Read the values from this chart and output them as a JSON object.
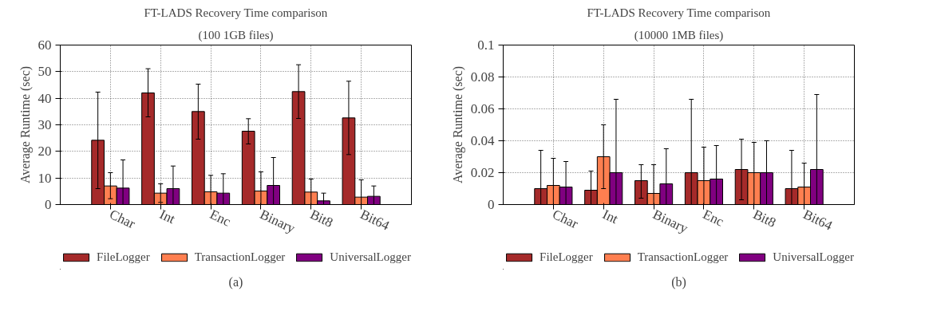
{
  "chart_data": [
    {
      "type": "bar",
      "title": "FT-LADS Recovery Time comparison",
      "subtitle": "(100 1GB files)",
      "ylabel": "Average Runtime (sec)",
      "categories": [
        "Char",
        "Int",
        "Enc",
        "Binary",
        "Bit8",
        "Bit64"
      ],
      "series": [
        {
          "name": "FileLogger",
          "color": "#a52a2a",
          "values": [
            24.2,
            42,
            35,
            27.6,
            42.5,
            32.6
          ],
          "errors": [
            [
              6,
              42.3
            ],
            [
              33,
              51.1
            ],
            [
              24.6,
              45.3
            ],
            [
              22.8,
              32.3
            ],
            [
              32.4,
              52.6
            ],
            [
              18.8,
              46.4
            ]
          ]
        },
        {
          "name": "TransactionLogger",
          "color": "#ff7f50",
          "values": [
            7,
            4.3,
            4.8,
            5.1,
            4.7,
            2.8
          ],
          "errors": [
            [
              2.2,
              12
            ],
            [
              0.8,
              7.8
            ],
            [
              0,
              11
            ],
            [
              0,
              12.3
            ],
            [
              0,
              9.6
            ],
            [
              0,
              9.3
            ]
          ]
        },
        {
          "name": "UniversalLogger",
          "color": "#800080",
          "values": [
            6.2,
            6,
            4.3,
            7.2,
            1.4,
            3.1
          ],
          "errors": [
            [
              0,
              16.8
            ],
            [
              0,
              14.5
            ],
            [
              0,
              11.6
            ],
            [
              0,
              17.7
            ],
            [
              0,
              4.3
            ],
            [
              0,
              7
            ]
          ]
        }
      ],
      "ylim": [
        0,
        60
      ],
      "yticks": [
        0,
        10,
        20,
        30,
        40,
        50,
        60
      ],
      "grid": true,
      "legend": "bottom",
      "annotations": [
        "(a)"
      ]
    },
    {
      "type": "bar",
      "title": "FT-LADS Recovery Time comparison",
      "subtitle": "(10000 1MB files)",
      "ylabel": "Average Runtime (sec)",
      "categories": [
        "Char",
        "Int",
        "Binary",
        "Enc",
        "Bit8",
        "Bit64"
      ],
      "series": [
        {
          "name": "FileLogger",
          "color": "#a52a2a",
          "values": [
            0.01,
            0.009,
            0.015,
            0.02,
            0.022,
            0.01
          ],
          "errors": [
            [
              0,
              0.034
            ],
            [
              0,
              0.021
            ],
            [
              0.004,
              0.025
            ],
            [
              0,
              0.066
            ],
            [
              0.003,
              0.041
            ],
            [
              0,
              0.034
            ]
          ]
        },
        {
          "name": "TransactionLogger",
          "color": "#ff7f50",
          "values": [
            0.012,
            0.03,
            0.007,
            0.015,
            0.02,
            0.011
          ],
          "errors": [
            [
              0,
              0.029
            ],
            [
              0.01,
              0.05
            ],
            [
              0,
              0.025
            ],
            [
              0,
              0.036
            ],
            [
              0,
              0.039
            ],
            [
              0,
              0.026
            ]
          ]
        },
        {
          "name": "UniversalLogger",
          "color": "#800080",
          "values": [
            0.011,
            0.02,
            0.013,
            0.016,
            0.02,
            0.022
          ],
          "errors": [
            [
              0,
              0.027
            ],
            [
              0,
              0.066
            ],
            [
              0,
              0.035
            ],
            [
              0,
              0.037
            ],
            [
              0,
              0.04
            ],
            [
              0,
              0.069
            ]
          ]
        }
      ],
      "ylim": [
        0,
        0.1
      ],
      "yticks": [
        0,
        0.02,
        0.04,
        0.06,
        0.08,
        0.1
      ],
      "grid": true,
      "legend": "bottom",
      "annotations": [
        "(b)"
      ]
    }
  ]
}
